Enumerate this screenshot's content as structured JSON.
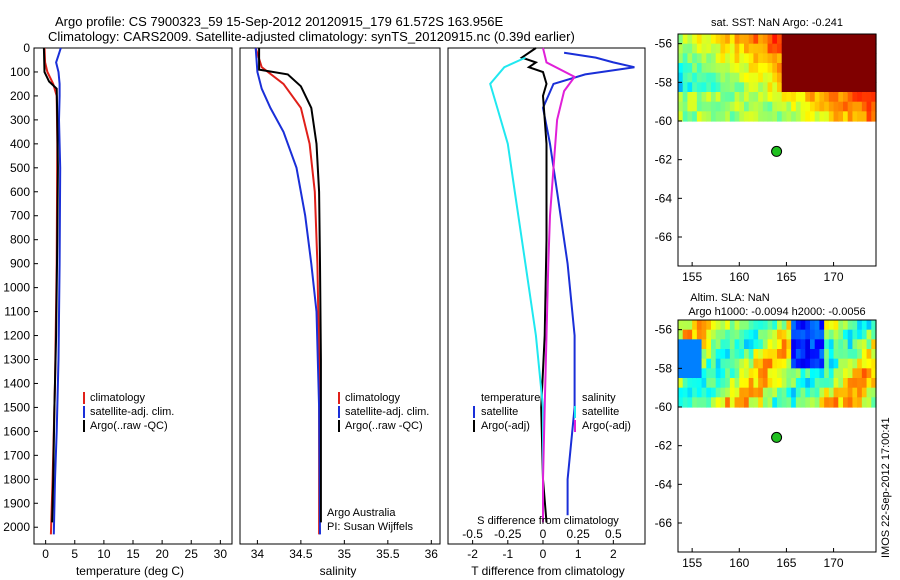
{
  "header": {
    "line1": "Argo profile: CS 7900323_59 15-Sep-2012 20120915_179 61.572S 163.956E",
    "line2": "Climatology: CARS2009. Satellite-adjusted climatology: synTS_20120915.nc (0.39d earlier)"
  },
  "footer_stamp": "IMOS 22-Sep-2012 17:00:41",
  "colors": {
    "climatology": "#e0201a",
    "satellite": "#1a2fd8",
    "argo": "#000000",
    "sat_salinity": "#20e8f0",
    "argo_salinity": "#e020d8"
  },
  "chart_data": [
    {
      "type": "line",
      "id": "temperature",
      "xlabel": "temperature (deg C)",
      "xlim": [
        -2,
        32
      ],
      "ylim": [
        2070,
        0
      ],
      "xticks": [
        0,
        5,
        10,
        15,
        20,
        25,
        30
      ],
      "yticks": [
        0,
        100,
        200,
        300,
        400,
        500,
        600,
        700,
        800,
        900,
        1000,
        1100,
        1200,
        1300,
        1400,
        1500,
        1600,
        1700,
        1800,
        1900,
        2000
      ],
      "legend": [
        "climatology",
        "satellite-adj. clim.",
        "Argo(..raw -QC)"
      ],
      "series": [
        {
          "name": "climatology",
          "color": "red",
          "points": [
            [
              -0.2,
              0
            ],
            [
              -0.1,
              60
            ],
            [
              0.3,
              100
            ],
            [
              1.3,
              150
            ],
            [
              1.9,
              200
            ],
            [
              2.0,
              400
            ],
            [
              1.9,
              900
            ],
            [
              1.6,
              1400
            ],
            [
              1.2,
              1800
            ],
            [
              0.9,
              2030
            ]
          ]
        },
        {
          "name": "satellite-adj. clim.",
          "color": "blue",
          "points": [
            [
              2.6,
              0
            ],
            [
              2.2,
              30
            ],
            [
              1.8,
              60
            ],
            [
              2.2,
              100
            ],
            [
              2.4,
              150
            ],
            [
              2.4,
              200
            ],
            [
              2.3,
              300
            ],
            [
              2.5,
              500
            ],
            [
              2.4,
              900
            ],
            [
              2.2,
              1300
            ],
            [
              1.9,
              1600
            ],
            [
              1.6,
              1800
            ],
            [
              1.4,
              2030
            ]
          ]
        },
        {
          "name": "Argo(..raw -QC)",
          "color": "black",
          "points": [
            [
              -0.3,
              0
            ],
            [
              -0.2,
              100
            ],
            [
              0.6,
              140
            ],
            [
              1.9,
              170
            ],
            [
              2.0,
              300
            ],
            [
              2.1,
              500
            ],
            [
              2.0,
              800
            ],
            [
              1.8,
              1200
            ],
            [
              1.5,
              1500
            ],
            [
              1.3,
              1800
            ],
            [
              1.1,
              1980
            ]
          ]
        }
      ]
    },
    {
      "type": "line",
      "id": "salinity",
      "xlabel": "salinity",
      "xlim": [
        33.8,
        36.1
      ],
      "ylim": [
        2070,
        0
      ],
      "xticks": [
        34,
        34.5,
        35,
        35.5,
        36
      ],
      "legend": [
        "climatology",
        "satellite-adj. clim.",
        "Argo(..raw -QC)"
      ],
      "annotation": [
        "Argo Australia",
        "PI: Susan Wijffels"
      ],
      "series": [
        {
          "name": "climatology",
          "color": "red",
          "points": [
            [
              33.98,
              0
            ],
            [
              34.05,
              80
            ],
            [
              34.3,
              150
            ],
            [
              34.5,
              250
            ],
            [
              34.6,
              400
            ],
            [
              34.66,
              600
            ],
            [
              34.69,
              900
            ],
            [
              34.71,
              1300
            ],
            [
              34.71,
              2030
            ]
          ]
        },
        {
          "name": "satellite-adj. clim.",
          "color": "blue",
          "points": [
            [
              33.98,
              0
            ],
            [
              34.0,
              100
            ],
            [
              34.05,
              170
            ],
            [
              34.15,
              250
            ],
            [
              34.3,
              350
            ],
            [
              34.45,
              500
            ],
            [
              34.55,
              700
            ],
            [
              34.62,
              900
            ],
            [
              34.68,
              1100
            ],
            [
              34.71,
              1500
            ],
            [
              34.72,
              2030
            ]
          ]
        },
        {
          "name": "Argo(..raw -QC)",
          "color": "black",
          "points": [
            [
              34.02,
              0
            ],
            [
              34.02,
              90
            ],
            [
              34.35,
              110
            ],
            [
              34.5,
              160
            ],
            [
              34.62,
              250
            ],
            [
              34.68,
              400
            ],
            [
              34.71,
              600
            ],
            [
              34.72,
              900
            ],
            [
              34.73,
              1300
            ],
            [
              34.73,
              1980
            ]
          ]
        }
      ]
    },
    {
      "type": "line",
      "id": "difference",
      "xlabel": "T difference from climatology",
      "xlabel2": "S difference from climatology",
      "xlim": [
        -2.7,
        2.9
      ],
      "ylim": [
        2070,
        0
      ],
      "xticks": [
        -2,
        -1,
        0,
        1,
        2
      ],
      "s_ticks": [
        -0.5,
        -0.25,
        0,
        0.25,
        0.5
      ],
      "legend_title_t": "temperature",
      "legend_title_s": "salinity",
      "legend_t": [
        "satellite",
        "Argo(-adj)"
      ],
      "legend_s": [
        "satellite",
        "Argo(-adj)"
      ],
      "series": [
        {
          "name": "T satellite",
          "color": "blue",
          "points": [
            [
              0.6,
              20
            ],
            [
              1.5,
              40
            ],
            [
              2.0,
              60
            ],
            [
              2.6,
              80
            ],
            [
              1.2,
              110
            ],
            [
              0.3,
              150
            ],
            [
              0.0,
              250
            ],
            [
              0.2,
              400
            ],
            [
              0.4,
              600
            ],
            [
              0.7,
              900
            ],
            [
              0.9,
              1200
            ],
            [
              0.9,
              1500
            ],
            [
              0.7,
              1800
            ],
            [
              0.7,
              1950
            ]
          ]
        },
        {
          "name": "T Argo(-adj)",
          "color": "black",
          "points": [
            [
              -0.2,
              0
            ],
            [
              -0.6,
              40
            ],
            [
              -0.2,
              60
            ],
            [
              -0.4,
              80
            ],
            [
              0.0,
              100
            ],
            [
              0.1,
              150
            ],
            [
              0.0,
              200
            ],
            [
              0.1,
              400
            ],
            [
              0.1,
              800
            ],
            [
              0.05,
              1200
            ],
            [
              -0.05,
              1500
            ],
            [
              0.0,
              1800
            ],
            [
              0.1,
              1980
            ]
          ]
        },
        {
          "name": "S satellite",
          "color": "cyan",
          "points": [
            [
              -0.5,
              40
            ],
            [
              -1.1,
              80
            ],
            [
              -1.5,
              150
            ],
            [
              -1.3,
              250
            ],
            [
              -1.0,
              400
            ],
            [
              -0.8,
              600
            ],
            [
              -0.5,
              900
            ],
            [
              -0.2,
              1200
            ],
            [
              0.0,
              1500
            ],
            [
              0.0,
              1800
            ],
            [
              0.0,
              1950
            ]
          ]
        },
        {
          "name": "S Argo(-adj)",
          "color": "magenta",
          "points": [
            [
              0.0,
              0
            ],
            [
              0.1,
              60
            ],
            [
              0.9,
              120
            ],
            [
              0.6,
              180
            ],
            [
              0.4,
              300
            ],
            [
              0.3,
              500
            ],
            [
              0.2,
              700
            ],
            [
              0.15,
              900
            ],
            [
              0.1,
              1200
            ],
            [
              0.05,
              1500
            ],
            [
              0.0,
              1800
            ],
            [
              0.0,
              1980
            ]
          ]
        }
      ]
    },
    {
      "type": "heatmap",
      "id": "sst_map",
      "title": "sat. SST: NaN Argo: -0.241",
      "xlim": [
        153.5,
        174.5
      ],
      "ylim": [
        -67.5,
        -55.5
      ],
      "xticks": [
        155,
        160,
        165,
        170
      ],
      "yticks": [
        -56,
        -58,
        -60,
        -62,
        -64,
        -66
      ],
      "data_south_limit": -60,
      "argo_position": [
        163.956,
        -61.572
      ]
    },
    {
      "type": "heatmap",
      "id": "sla_map",
      "title": "Altim. SLA: NaN",
      "subtitle": "Argo h1000: -0.0094 h2000: -0.0056",
      "xlim": [
        153.5,
        174.5
      ],
      "ylim": [
        -67.5,
        -55.5
      ],
      "xticks": [
        155,
        160,
        165,
        170
      ],
      "yticks": [
        -56,
        -58,
        -60,
        -62,
        -64,
        -66
      ],
      "data_south_limit": -60,
      "argo_position": [
        163.956,
        -61.572
      ]
    }
  ]
}
